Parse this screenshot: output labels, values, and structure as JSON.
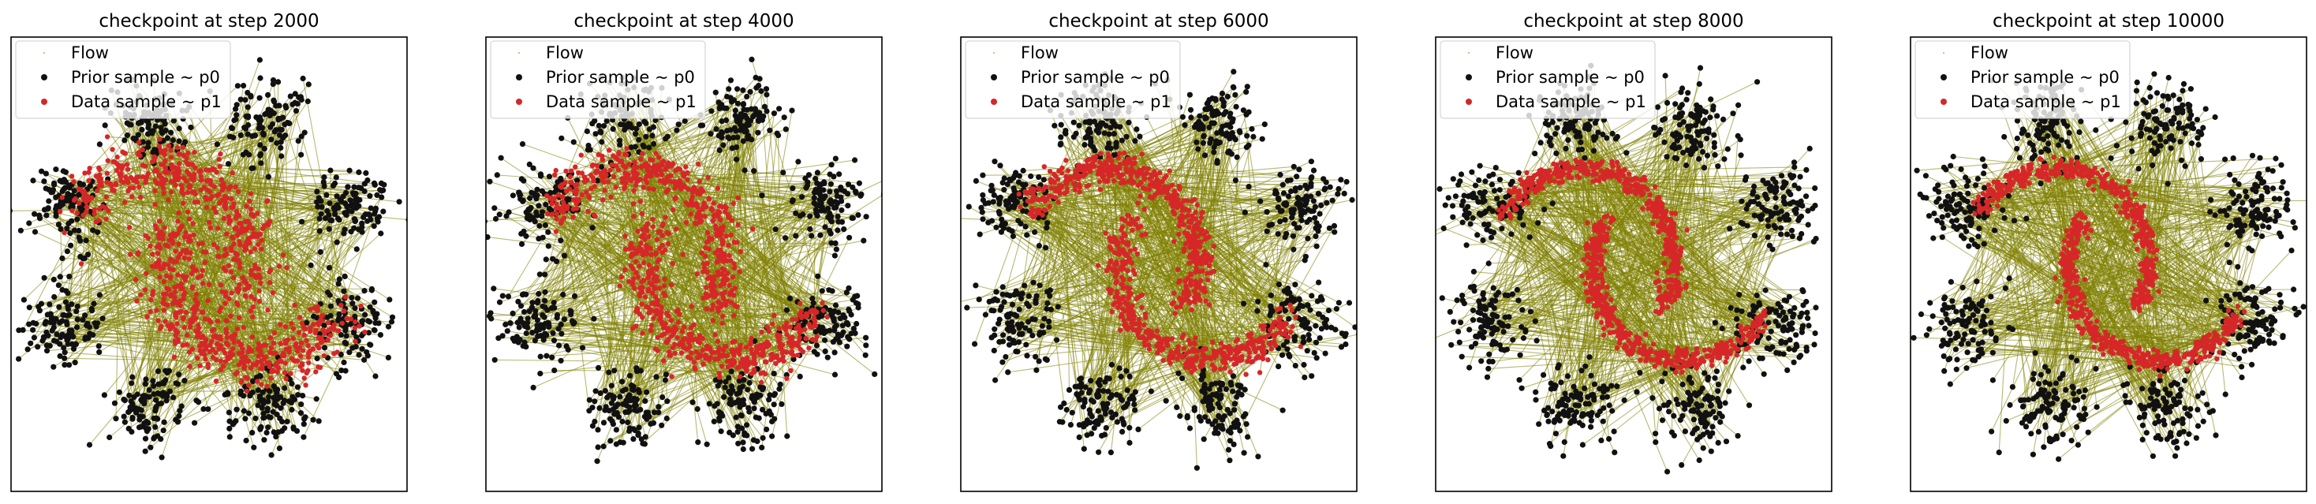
{
  "figure": {
    "panel_titles": [
      "checkpoint at step 2000",
      "checkpoint at step 4000",
      "checkpoint at step 6000",
      "checkpoint at step 8000",
      "checkpoint at step 10000"
    ],
    "legend_entries": [
      "Flow",
      "Prior sample ~ p0",
      "Data sample ~ p1"
    ],
    "colors": {
      "flow": "#808000",
      "prior": "#111111",
      "data": "#d62728",
      "axes": "#000000",
      "legend_bg": "#ffffff"
    }
  },
  "chart_data": [
    {
      "type": "scatter",
      "title": "checkpoint at step 2000",
      "xlabel": "",
      "ylabel": "",
      "grid": false,
      "legend_position": "top-left",
      "series": [
        {
          "name": "Flow",
          "kind": "trajectories",
          "color": "#808000"
        },
        {
          "name": "Prior sample ~ p0",
          "kind": "8 gaussian clusters",
          "cluster_centers_angle_deg": [
            0,
            45,
            90,
            135,
            180,
            225,
            270,
            315
          ],
          "color": "#111111"
        },
        {
          "name": "Data sample ~ p1",
          "kind": "two moons",
          "color": "#d62728",
          "spread": 0.55
        }
      ]
    },
    {
      "type": "scatter",
      "title": "checkpoint at step 4000",
      "xlabel": "",
      "ylabel": "",
      "grid": false,
      "legend_position": "top-left",
      "series": [
        {
          "name": "Flow",
          "kind": "trajectories",
          "color": "#808000"
        },
        {
          "name": "Prior sample ~ p0",
          "kind": "8 gaussian clusters",
          "cluster_centers_angle_deg": [
            0,
            45,
            90,
            135,
            180,
            225,
            270,
            315
          ],
          "color": "#111111"
        },
        {
          "name": "Data sample ~ p1",
          "kind": "two moons",
          "color": "#d62728",
          "spread": 0.4
        }
      ]
    },
    {
      "type": "scatter",
      "title": "checkpoint at step 6000",
      "xlabel": "",
      "ylabel": "",
      "grid": false,
      "legend_position": "top-left",
      "series": [
        {
          "name": "Flow",
          "kind": "trajectories",
          "color": "#808000"
        },
        {
          "name": "Prior sample ~ p0",
          "kind": "8 gaussian clusters",
          "cluster_centers_angle_deg": [
            0,
            45,
            90,
            135,
            180,
            225,
            270,
            315
          ],
          "color": "#111111"
        },
        {
          "name": "Data sample ~ p1",
          "kind": "two moons",
          "color": "#d62728",
          "spread": 0.28
        }
      ]
    },
    {
      "type": "scatter",
      "title": "checkpoint at step 8000",
      "xlabel": "",
      "ylabel": "",
      "grid": false,
      "legend_position": "top-left",
      "series": [
        {
          "name": "Flow",
          "kind": "trajectories",
          "color": "#808000"
        },
        {
          "name": "Prior sample ~ p0",
          "kind": "8 gaussian clusters",
          "cluster_centers_angle_deg": [
            0,
            45,
            90,
            135,
            180,
            225,
            270,
            315
          ],
          "color": "#111111"
        },
        {
          "name": "Data sample ~ p1",
          "kind": "two moons",
          "color": "#d62728",
          "spread": 0.2
        }
      ]
    },
    {
      "type": "scatter",
      "title": "checkpoint at step 10000",
      "xlabel": "",
      "ylabel": "",
      "grid": false,
      "legend_position": "top-left",
      "series": [
        {
          "name": "Flow",
          "kind": "trajectories",
          "color": "#808000"
        },
        {
          "name": "Prior sample ~ p0",
          "kind": "8 gaussian clusters",
          "cluster_centers_angle_deg": [
            0,
            45,
            90,
            135,
            180,
            225,
            270,
            315
          ],
          "color": "#111111"
        },
        {
          "name": "Data sample ~ p1",
          "kind": "two moons",
          "color": "#d62728",
          "spread": 0.18
        }
      ]
    }
  ]
}
